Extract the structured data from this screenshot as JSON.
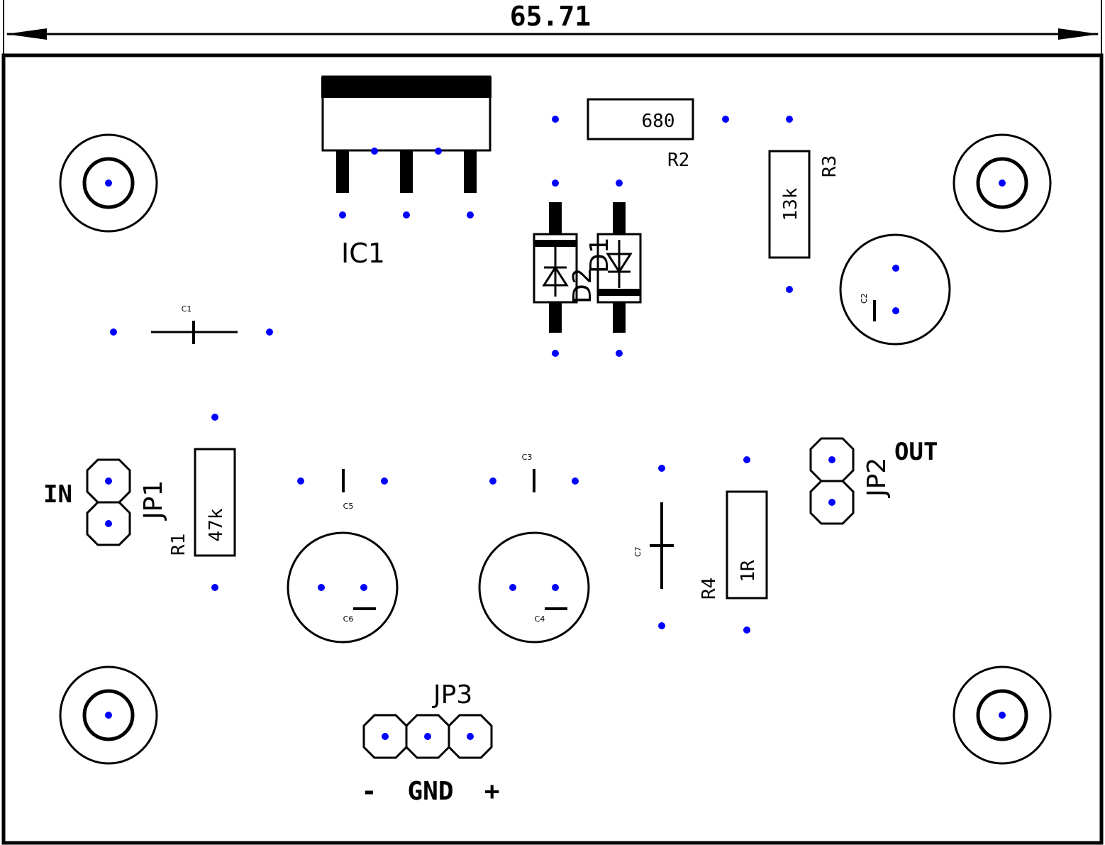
{
  "dimension": {
    "value": "65.71"
  },
  "ic": {
    "name": "IC1"
  },
  "resistors": {
    "r1": {
      "name": "R1",
      "value": "47k"
    },
    "r2": {
      "name": "R2",
      "value": "680"
    },
    "r3": {
      "name": "R3",
      "value": "13k"
    },
    "r4": {
      "name": "R4",
      "value": "1R"
    }
  },
  "diodes": {
    "d1": "D1",
    "d2": "D2"
  },
  "capacitors": {
    "c1": "C1",
    "c2": "C2",
    "c3": "C3",
    "c4": "C4",
    "c5": "C5",
    "c6": "C6",
    "c7": "C7"
  },
  "connectors": {
    "jp1": {
      "name": "JP1",
      "label": "IN"
    },
    "jp2": {
      "name": "JP2",
      "label": "OUT"
    },
    "jp3": {
      "name": "JP3",
      "label": "-  GND  +"
    }
  },
  "colors": {
    "pad": "#0000ff",
    "outline": "#000000",
    "background": "#ffffff"
  }
}
